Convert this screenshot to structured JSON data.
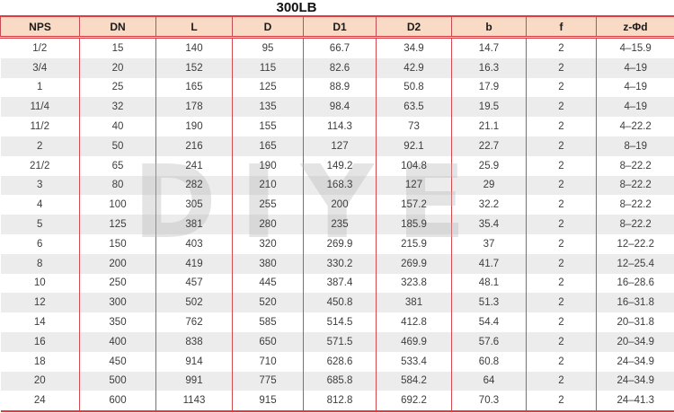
{
  "title": "300LB",
  "watermark": {
    "text": "DIYE"
  },
  "colors": {
    "border_red": "#e0393e",
    "vertical_line_red": "#d64a4f",
    "header_bg": "#f9dac5",
    "stripe_gray": "#ececec",
    "text": "#3d3d3d"
  },
  "table": {
    "columns": [
      "NPS",
      "DN",
      "L",
      "D",
      "D1",
      "D2",
      "b",
      "f",
      "z-Φd"
    ],
    "rows": [
      [
        "1/2",
        "15",
        "140",
        "95",
        "66.7",
        "34.9",
        "14.7",
        "2",
        "4–15.9"
      ],
      [
        "3/4",
        "20",
        "152",
        "115",
        "82.6",
        "42.9",
        "16.3",
        "2",
        "4–19"
      ],
      [
        "1",
        "25",
        "165",
        "125",
        "88.9",
        "50.8",
        "17.9",
        "2",
        "4–19"
      ],
      [
        "11/4",
        "32",
        "178",
        "135",
        "98.4",
        "63.5",
        "19.5",
        "2",
        "4–19"
      ],
      [
        "11/2",
        "40",
        "190",
        "155",
        "114.3",
        "73",
        "21.1",
        "2",
        "4–22.2"
      ],
      [
        "2",
        "50",
        "216",
        "165",
        "127",
        "92.1",
        "22.7",
        "2",
        "8–19"
      ],
      [
        "21/2",
        "65",
        "241",
        "190",
        "149.2",
        "104.8",
        "25.9",
        "2",
        "8–22.2"
      ],
      [
        "3",
        "80",
        "282",
        "210",
        "168.3",
        "127",
        "29",
        "2",
        "8–22.2"
      ],
      [
        "4",
        "100",
        "305",
        "255",
        "200",
        "157.2",
        "32.2",
        "2",
        "8–22.2"
      ],
      [
        "5",
        "125",
        "381",
        "280",
        "235",
        "185.9",
        "35.4",
        "2",
        "8–22.2"
      ],
      [
        "6",
        "150",
        "403",
        "320",
        "269.9",
        "215.9",
        "37",
        "2",
        "12–22.2"
      ],
      [
        "8",
        "200",
        "419",
        "380",
        "330.2",
        "269.9",
        "41.7",
        "2",
        "12–25.4"
      ],
      [
        "10",
        "250",
        "457",
        "445",
        "387.4",
        "323.8",
        "48.1",
        "2",
        "16–28.6"
      ],
      [
        "12",
        "300",
        "502",
        "520",
        "450.8",
        "381",
        "51.3",
        "2",
        "16–31.8"
      ],
      [
        "14",
        "350",
        "762",
        "585",
        "514.5",
        "412.8",
        "54.4",
        "2",
        "20–31.8"
      ],
      [
        "16",
        "400",
        "838",
        "650",
        "571.5",
        "469.9",
        "57.6",
        "2",
        "20–34.9"
      ],
      [
        "18",
        "450",
        "914",
        "710",
        "628.6",
        "533.4",
        "60.8",
        "2",
        "24–34.9"
      ],
      [
        "20",
        "500",
        "991",
        "775",
        "685.8",
        "584.2",
        "64",
        "2",
        "24–34.9"
      ],
      [
        "24",
        "600",
        "1143",
        "915",
        "812.8",
        "692.2",
        "70.3",
        "2",
        "24–41.3"
      ]
    ]
  }
}
